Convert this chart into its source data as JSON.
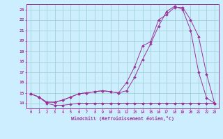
{
  "xlabel": "Windchill (Refroidissement éolien,°C)",
  "bg_color": "#cceeff",
  "grid_color": "#99cccc",
  "line_color": "#993399",
  "xlim": [
    -0.5,
    23.5
  ],
  "ylim": [
    13.5,
    23.5
  ],
  "xticks": [
    0,
    1,
    2,
    3,
    4,
    5,
    6,
    7,
    8,
    9,
    10,
    11,
    12,
    13,
    14,
    15,
    16,
    17,
    18,
    19,
    20,
    21,
    22,
    23
  ],
  "yticks": [
    14,
    15,
    16,
    17,
    18,
    19,
    20,
    21,
    22,
    23
  ],
  "line1_x": [
    0,
    1,
    2,
    3,
    4,
    5,
    6,
    7,
    8,
    9,
    10,
    11,
    12,
    13,
    14,
    15,
    16,
    17,
    18,
    19,
    20,
    21,
    22,
    23
  ],
  "line1_y": [
    14.9,
    14.6,
    14.0,
    13.8,
    13.8,
    13.9,
    14.0,
    14.0,
    14.0,
    14.0,
    14.0,
    14.0,
    14.0,
    14.0,
    14.0,
    14.0,
    14.0,
    14.0,
    14.0,
    14.0,
    14.0,
    14.0,
    14.0,
    14.0
  ],
  "line2_x": [
    0,
    1,
    2,
    3,
    4,
    5,
    6,
    7,
    8,
    9,
    10,
    11,
    12,
    13,
    14,
    15,
    16,
    17,
    18,
    19,
    20,
    21,
    22,
    23
  ],
  "line2_y": [
    14.9,
    14.6,
    14.1,
    14.1,
    14.3,
    14.6,
    14.9,
    15.0,
    15.1,
    15.2,
    15.1,
    15.0,
    16.0,
    17.5,
    19.5,
    19.9,
    22.0,
    22.5,
    23.2,
    23.2,
    22.0,
    20.4,
    16.8,
    14.0
  ],
  "line3_x": [
    0,
    1,
    2,
    3,
    4,
    5,
    6,
    7,
    8,
    9,
    10,
    11,
    12,
    13,
    14,
    15,
    16,
    17,
    18,
    19,
    20,
    21,
    22,
    23
  ],
  "line3_y": [
    14.9,
    14.6,
    14.1,
    14.1,
    14.3,
    14.6,
    14.9,
    15.0,
    15.1,
    15.2,
    15.1,
    15.0,
    15.2,
    16.5,
    18.2,
    19.7,
    21.4,
    22.8,
    23.3,
    23.0,
    21.0,
    17.0,
    14.5,
    14.0
  ]
}
